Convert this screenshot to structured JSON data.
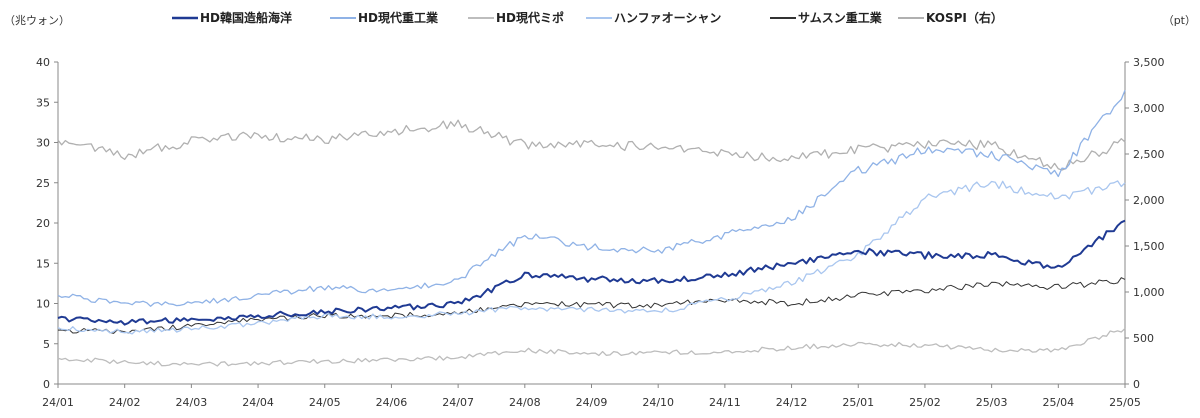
{
  "chart_data": {
    "type": "line",
    "left_unit": "（兆ウォン）",
    "right_unit": "（pt）",
    "y_ticks_left": [
      "0",
      "5",
      "10",
      "15",
      "20",
      "25",
      "30",
      "35",
      "40"
    ],
    "y_ticks_right": [
      "0",
      "500",
      "1,000",
      "1,500",
      "2,000",
      "2,500",
      "3,000",
      "3,500"
    ],
    "ylim_left": [
      0,
      40
    ],
    "ylim_right": [
      0,
      3500
    ],
    "x": [
      "24/01",
      "24/02",
      "24/03",
      "24/04",
      "24/05",
      "24/06",
      "24/07",
      "24/08",
      "24/09",
      "24/10",
      "24/11",
      "24/12",
      "25/01",
      "25/02",
      "25/03",
      "25/04",
      "25/05"
    ],
    "series": [
      {
        "name": "HD韓国造船海洋",
        "axis": "left",
        "color": "#1f3a93",
        "width": 2,
        "values": [
          8.2,
          7.6,
          8.0,
          8.5,
          9.0,
          9.4,
          10.0,
          13.5,
          13.0,
          12.8,
          13.5,
          15.0,
          16.5,
          16.0,
          16.0,
          14.5,
          20.3
        ]
      },
      {
        "name": "HD現代重工業",
        "axis": "left",
        "color": "#8fb2e6",
        "width": 1.3,
        "values": [
          11.0,
          10.0,
          10.0,
          11.0,
          12.0,
          11.5,
          13.0,
          18.5,
          17.0,
          16.5,
          18.5,
          20.5,
          26.5,
          29.0,
          28.5,
          26.0,
          36.5
        ]
      },
      {
        "name": "HD現代ミポ",
        "axis": "left",
        "color": "#bdbdbd",
        "width": 1.3,
        "values": [
          3.2,
          2.7,
          2.4,
          2.6,
          2.8,
          3.0,
          3.3,
          4.2,
          3.8,
          3.9,
          4.0,
          4.5,
          5.0,
          4.8,
          4.2,
          4.2,
          6.9
        ]
      },
      {
        "name": "ハンファオーシャン",
        "axis": "left",
        "color": "#a9c6ef",
        "width": 1.3,
        "values": [
          7.0,
          6.5,
          6.8,
          7.5,
          8.5,
          8.3,
          8.8,
          9.5,
          9.2,
          9.0,
          10.5,
          12.5,
          16.0,
          23.0,
          25.0,
          23.0,
          25.0
        ]
      },
      {
        "name": "サムスン重工業",
        "axis": "left",
        "color": "#333333",
        "width": 1,
        "values": [
          6.7,
          6.5,
          7.2,
          8.0,
          8.5,
          8.5,
          8.8,
          10.0,
          9.8,
          9.8,
          10.5,
          10.0,
          11.0,
          11.5,
          12.5,
          12.0,
          13.0
        ]
      },
      {
        "name": "KOSPI（右）",
        "axis": "right",
        "color": "#b0b0b0",
        "width": 1.3,
        "values": [
          2650,
          2480,
          2640,
          2700,
          2650,
          2750,
          2820,
          2600,
          2600,
          2580,
          2500,
          2450,
          2550,
          2600,
          2600,
          2350,
          2630
        ]
      }
    ]
  }
}
